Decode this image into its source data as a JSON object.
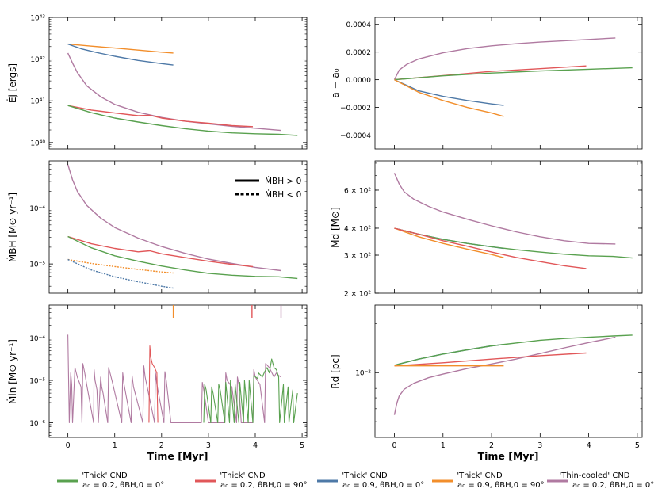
{
  "colors": {
    "green": "#59a14f",
    "red": "#e15759",
    "blue": "#4e79a7",
    "orange": "#f28e2b",
    "purple": "#b07aa1"
  },
  "x_axis": {
    "label": "Time [Myr]",
    "range": [
      -0.4,
      5.1
    ],
    "ticks": [
      0,
      1,
      2,
      3,
      4,
      5
    ]
  },
  "legend": {
    "entries": [
      {
        "color": "green",
        "line1": "'Thick' CND",
        "line2": "a₀ = 0.2,  θBH,0 = 0°"
      },
      {
        "color": "red",
        "line1": "'Thick' CND",
        "line2": "a₀ = 0.2,  θBH,0 = 90°"
      },
      {
        "color": "blue",
        "line1": "'Thick' CND",
        "line2": "a₀ = 0.9,  θBH,0 = 0°"
      },
      {
        "color": "orange",
        "line1": "'Thick' CND",
        "line2": "a₀ = 0.9,  θBH,0 = 90°"
      },
      {
        "color": "purple",
        "line1": "'Thin-cooled' CND",
        "line2": "a₀ = 0.2,  θBH,0 = 0°"
      }
    ],
    "style_entries": [
      {
        "style": "solid",
        "label": "ṀBH > 0"
      },
      {
        "style": "dashed",
        "label": "ṀBH < 0"
      }
    ]
  },
  "chart_data": [
    {
      "id": "jet-energy",
      "type": "line",
      "ylabel": "Ėj [ergs]",
      "yscale": "log",
      "ylim": [
        7e+39,
        1e+43
      ],
      "tick_labels": [
        "10⁴⁰",
        "10⁴¹",
        "10⁴²",
        "10⁴³"
      ],
      "tick_values": [
        1e+40,
        1e+41,
        1e+42,
        1e+43
      ],
      "series": [
        {
          "color": "orange",
          "x": [
            0,
            0.5,
            1,
            1.5,
            2,
            2.25
          ],
          "y": [
            2.3e+42,
            2.05e+42,
            1.85e+42,
            1.65e+42,
            1.47e+42,
            1.4e+42
          ]
        },
        {
          "color": "blue",
          "x": [
            0,
            0.3,
            0.6,
            1,
            1.5,
            2,
            2.25
          ],
          "y": [
            2.3e+42,
            1.75e+42,
            1.45e+42,
            1.17e+42,
            9.3e+41,
            7.8e+41,
            7.2e+41
          ]
        },
        {
          "color": "purple",
          "x": [
            0,
            0.1,
            0.2,
            0.4,
            0.7,
            1,
            1.5,
            2,
            2.5,
            3,
            3.5,
            4,
            4.55
          ],
          "y": [
            1.4e+42,
            8e+41,
            4.8e+41,
            2.3e+41,
            1.25e+41,
            8.2e+40,
            5.3e+40,
            4e+40,
            3.25e+40,
            2.8e+40,
            2.45e+40,
            2.2e+40,
            1.95e+40
          ]
        },
        {
          "color": "red",
          "x": [
            0,
            0.5,
            1,
            1.5,
            1.75,
            2,
            2.5,
            3,
            3.5,
            3.95
          ],
          "y": [
            7.7e+40,
            6e+40,
            5.1e+40,
            4.4e+40,
            4.5e+40,
            3.85e+40,
            3.25e+40,
            2.9e+40,
            2.55e+40,
            2.4e+40
          ]
        },
        {
          "color": "green",
          "x": [
            0,
            0.5,
            1,
            1.5,
            2,
            2.5,
            3,
            3.5,
            4,
            4.5,
            4.9
          ],
          "y": [
            7.7e+40,
            5.2e+40,
            3.85e+40,
            3.1e+40,
            2.55e+40,
            2.15e+40,
            1.87e+40,
            1.7e+40,
            1.62e+40,
            1.57e+40,
            1.48e+40
          ]
        }
      ]
    },
    {
      "id": "spin-change",
      "type": "line",
      "ylabel": "a − a₀",
      "yscale": "linear",
      "ylim": [
        -0.0005,
        0.00045
      ],
      "tick_labels": [
        "−0.0004",
        "−0.0002",
        "0.0000",
        "0.0002",
        "0.0004"
      ],
      "tick_values": [
        -0.0004,
        -0.0002,
        0,
        0.0002,
        0.0004
      ],
      "series": [
        {
          "color": "purple",
          "x": [
            0,
            0.1,
            0.25,
            0.5,
            1,
            1.5,
            2,
            2.5,
            3,
            3.5,
            4,
            4.55
          ],
          "y": [
            0,
            7e-05,
            0.00011,
            0.00015,
            0.000195,
            0.000225,
            0.000245,
            0.00026,
            0.000272,
            0.000282,
            0.000291,
            0.000302
          ]
        },
        {
          "color": "red",
          "x": [
            0,
            1,
            2,
            3,
            3.95
          ],
          "y": [
            0,
            3e-05,
            6e-05,
            8e-05,
            0.0001
          ]
        },
        {
          "color": "green",
          "x": [
            0,
            1,
            2,
            3,
            4,
            4.9
          ],
          "y": [
            0,
            2.8e-05,
            4.8e-05,
            6.3e-05,
            7.6e-05,
            8.6e-05
          ]
        },
        {
          "color": "blue",
          "x": [
            0,
            0.5,
            1,
            1.5,
            2,
            2.25
          ],
          "y": [
            0,
            -8e-05,
            -0.00012,
            -0.00015,
            -0.000175,
            -0.000185
          ]
        },
        {
          "color": "orange",
          "x": [
            0,
            0.5,
            1,
            1.5,
            2,
            2.25
          ],
          "y": [
            0,
            -9e-05,
            -0.00015,
            -0.0002,
            -0.00024,
            -0.000265
          ]
        }
      ]
    },
    {
      "id": "bh-accretion",
      "type": "line",
      "ylabel": "ṀBH [M⊙ yr⁻¹]",
      "yscale": "log",
      "ylim": [
        3e-06,
        0.0007
      ],
      "tick_labels": [
        "10⁻⁵",
        "10⁻⁴"
      ],
      "tick_values": [
        1e-05,
        0.0001
      ],
      "series": [
        {
          "color": "purple",
          "dash": false,
          "x": [
            0,
            0.1,
            0.2,
            0.4,
            0.7,
            1,
            1.5,
            2,
            2.5,
            3,
            3.5,
            4,
            4.55
          ],
          "y": [
            0.0006,
            0.00032,
            0.0002,
            0.000112,
            6.6e-05,
            4.5e-05,
            2.9e-05,
            2.05e-05,
            1.55e-05,
            1.22e-05,
            1.02e-05,
            8.7e-06,
            7.6e-06
          ]
        },
        {
          "color": "red",
          "dash": false,
          "x": [
            0,
            0.5,
            1,
            1.5,
            1.75,
            2,
            2.5,
            3,
            3.5,
            3.95
          ],
          "y": [
            3.1e-05,
            2.3e-05,
            1.9e-05,
            1.65e-05,
            1.72e-05,
            1.52e-05,
            1.3e-05,
            1.12e-05,
            9.8e-06,
            9e-06
          ]
        },
        {
          "color": "green",
          "dash": false,
          "x": [
            0,
            0.5,
            1,
            1.5,
            2,
            2.5,
            3,
            3.5,
            4,
            4.5,
            4.9
          ],
          "y": [
            3.1e-05,
            1.95e-05,
            1.4e-05,
            1.12e-05,
            9.2e-06,
            7.8e-06,
            6.8e-06,
            6.3e-06,
            6e-06,
            5.9e-06,
            5.5e-06
          ]
        },
        {
          "color": "orange",
          "dash": true,
          "x": [
            0,
            0.5,
            1,
            1.5,
            2,
            2.25
          ],
          "y": [
            1.2e-05,
            1.02e-05,
            9e-06,
            8e-06,
            7.2e-06,
            6.9e-06
          ]
        },
        {
          "color": "blue",
          "dash": true,
          "x": [
            0,
            0.5,
            1,
            1.5,
            2,
            2.25
          ],
          "y": [
            1.2e-05,
            7.8e-06,
            5.9e-06,
            4.8e-06,
            4e-06,
            3.7e-06
          ]
        }
      ]
    },
    {
      "id": "disc-mass",
      "type": "line",
      "ylabel": "Md [M⊙]",
      "yscale": "log",
      "ylim": [
        200,
        820
      ],
      "tick_labels": [
        "2 × 10²",
        "3 × 10²",
        "4 × 10²",
        "6 × 10²"
      ],
      "tick_values": [
        200,
        300,
        400,
        600
      ],
      "series": [
        {
          "color": "purple",
          "x": [
            0,
            0.1,
            0.2,
            0.4,
            0.7,
            1,
            1.5,
            2,
            2.5,
            3,
            3.5,
            4,
            4.55
          ],
          "y": [
            720,
            640,
            590,
            545,
            505,
            475,
            440,
            410,
            385,
            365,
            350,
            340,
            338
          ]
        },
        {
          "color": "blue",
          "x": [
            0,
            0.5,
            1,
            1.5,
            2,
            2.25
          ],
          "y": [
            400,
            375,
            355,
            340,
            328,
            322
          ]
        },
        {
          "color": "green",
          "x": [
            0,
            0.5,
            1,
            1.5,
            2,
            2.5,
            3,
            3.5,
            4,
            4.5,
            4.9
          ],
          "y": [
            400,
            375,
            355,
            340,
            328,
            318,
            310,
            303,
            298,
            296,
            291
          ]
        },
        {
          "color": "orange",
          "x": [
            0,
            0.5,
            1,
            1.5,
            2,
            2.25
          ],
          "y": [
            400,
            365,
            340,
            320,
            302,
            292
          ]
        },
        {
          "color": "red",
          "x": [
            0,
            0.5,
            1,
            1.5,
            2,
            2.5,
            3,
            3.5,
            3.95
          ],
          "y": [
            400,
            375,
            350,
            330,
            310,
            293,
            280,
            268,
            260
          ]
        }
      ]
    },
    {
      "id": "inflow-rate",
      "type": "line",
      "ylabel": "Ṁin [M⊙ yr⁻¹]",
      "yscale": "log",
      "ylim": [
        4.5e-07,
        0.0006
      ],
      "tick_labels": [
        "10⁻⁶",
        "10⁻⁵",
        "10⁻⁴"
      ],
      "tick_values": [
        1e-06,
        1e-05,
        0.0001
      ],
      "series": [
        {
          "color": "purple",
          "x": [
            0,
            0.03,
            0.06,
            0.08,
            0.1,
            0.15,
            0.2,
            0.28,
            0.3,
            0.32,
            0.36,
            0.4,
            0.55,
            0.56,
            0.58,
            0.62,
            0.65,
            0.7,
            0.72,
            0.75,
            0.85,
            0.87,
            0.9,
            0.95,
            1.15,
            1.17,
            1.2,
            1.35,
            1.37,
            1.4,
            1.6,
            1.62,
            1.65,
            1.85,
            1.87,
            1.9,
            2.05,
            2.07,
            2.1,
            2.2,
            2.85,
            2.87,
            2.9,
            3.0,
            3.35,
            3.37,
            3.4,
            3.5,
            3.6,
            3.62,
            3.65,
            3.7,
            3.95,
            3.97,
            4.0,
            4.1,
            4.2,
            4.22,
            4.3,
            4.4,
            4.45,
            4.5,
            4.55
          ],
          "y": [
            0.00012,
            1e-06,
            1.5e-05,
            8e-06,
            1e-06,
            2e-05,
            1.2e-05,
            7e-06,
            1e-06,
            2.5e-05,
            1.5e-05,
            8e-06,
            1e-06,
            1.8e-05,
            1e-05,
            6e-06,
            1e-06,
            1.2e-05,
            7e-06,
            5e-06,
            1e-06,
            2e-05,
            1.5e-05,
            9e-06,
            1e-06,
            1.5e-05,
            8e-06,
            1e-06,
            1.3e-05,
            7e-06,
            1e-06,
            2.2e-05,
            1.2e-05,
            1e-06,
            1.5e-05,
            8e-06,
            1e-06,
            1.6e-05,
            1e-05,
            1e-06,
            1e-06,
            9e-06,
            6e-06,
            1e-06,
            1e-06,
            1.5e-05,
            1e-05,
            7e-06,
            1e-06,
            1.2e-05,
            8e-06,
            1e-06,
            1e-06,
            1.8e-05,
            1.2e-05,
            8e-06,
            1e-06,
            2.5e-05,
            2e-05,
            1.2e-05,
            1.5e-05,
            1.3e-05,
            1.2e-05
          ]
        },
        {
          "color": "red",
          "x": [
            1.73,
            1.75,
            1.77,
            1.8,
            1.85,
            1.9,
            1.92
          ],
          "y": [
            1e-06,
            6.5e-05,
            3.5e-05,
            2.5e-05,
            2e-05,
            1.5e-05,
            1e-06
          ]
        },
        {
          "color": "green",
          "x": [
            2.9,
            2.92,
            2.95,
            3.05,
            3.07,
            3.1,
            3.2,
            3.22,
            3.25,
            3.35,
            3.37,
            3.45,
            3.47,
            3.55,
            3.57,
            3.65,
            3.67,
            3.75,
            3.77,
            3.85,
            3.87,
            3.95,
            3.97,
            4.05,
            4.07,
            4.15,
            4.2,
            4.25,
            4.3,
            4.35,
            4.4,
            4.45,
            4.5,
            4.52,
            4.6,
            4.62,
            4.7,
            4.72,
            4.8,
            4.82,
            4.9
          ],
          "y": [
            1e-06,
            8e-06,
            6e-06,
            1e-06,
            7e-06,
            5e-06,
            1e-06,
            8e-06,
            6e-06,
            1e-06,
            9e-06,
            1e-06,
            1e-05,
            1e-06,
            8e-06,
            1e-06,
            9e-06,
            1e-06,
            1e-05,
            1e-06,
            1e-05,
            1e-06,
            1.3e-05,
            1.1e-05,
            1.5e-05,
            1.2e-05,
            1.6e-05,
            2e-05,
            1.5e-05,
            3.2e-05,
            2e-05,
            1.8e-05,
            1.2e-05,
            1e-06,
            8e-06,
            1e-06,
            7e-06,
            1e-06,
            6e-06,
            1e-06,
            5e-06
          ]
        }
      ],
      "top_clipped_marks": [
        {
          "color": "orange",
          "x": 2.25
        },
        {
          "color": "red",
          "x": 3.93
        },
        {
          "color": "purple",
          "x": 4.55
        }
      ]
    },
    {
      "id": "disc-radius",
      "type": "line",
      "ylabel": "Rd [pc]",
      "yscale": "log",
      "ylim": [
        0.004,
        0.026
      ],
      "tick_labels": [
        "10⁻²"
      ],
      "tick_values": [
        0.01
      ],
      "series": [
        {
          "color": "purple",
          "x": [
            0,
            0.05,
            0.1,
            0.2,
            0.4,
            0.7,
            1,
            1.5,
            2,
            2.5,
            3,
            3.5,
            4,
            4.55
          ],
          "y": [
            0.0055,
            0.0065,
            0.0072,
            0.0079,
            0.0086,
            0.0093,
            0.0098,
            0.0106,
            0.0113,
            0.0121,
            0.0131,
            0.0142,
            0.0153,
            0.0165
          ]
        },
        {
          "color": "blue",
          "x": [
            0,
            0.5,
            1,
            1.5,
            2,
            2.25
          ],
          "y": [
            0.0111,
            0.0121,
            0.013,
            0.0138,
            0.0146,
            0.0149
          ]
        },
        {
          "color": "green",
          "x": [
            0,
            0.5,
            1,
            1.5,
            2,
            2.5,
            3,
            3.5,
            4,
            4.5,
            4.9
          ],
          "y": [
            0.0111,
            0.0121,
            0.013,
            0.0138,
            0.0146,
            0.0152,
            0.0158,
            0.0162,
            0.0165,
            0.0168,
            0.017
          ]
        },
        {
          "color": "red",
          "x": [
            0,
            1,
            2,
            3,
            3.95
          ],
          "y": [
            0.011,
            0.0115,
            0.0121,
            0.0127,
            0.0132
          ]
        },
        {
          "color": "orange",
          "x": [
            0,
            1,
            2,
            2.25
          ],
          "y": [
            0.011,
            0.011,
            0.011,
            0.011
          ]
        }
      ]
    }
  ]
}
